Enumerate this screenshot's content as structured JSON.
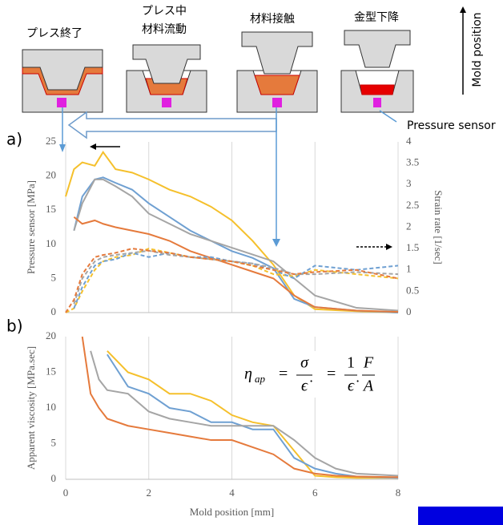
{
  "diagram": {
    "stages": [
      "プレス終了",
      "プレス中",
      "材料流動",
      "材料接触",
      "金型下降"
    ],
    "mold_position": "Mold position",
    "pressure_sensor": "Pressure sensor",
    "panel_a": "a)",
    "panel_b": "b)"
  },
  "equation": {
    "eta": "η",
    "sub": "ap",
    "eq": "=",
    "n1": "σ",
    "d1": "ϵ̇",
    "n2": "1",
    "d2": "ϵ̇",
    "n3": "F",
    "d3": "A"
  },
  "chart_data": [
    {
      "type": "line",
      "ylabel": "Pressure sensor [MPa]",
      "y2label": "Strain rate [1/sec]",
      "xlim": [
        0,
        8
      ],
      "xticks": [
        0,
        2,
        4,
        6,
        8
      ],
      "ylim": [
        0,
        25
      ],
      "yticks": [
        0,
        5,
        10,
        15,
        20,
        25
      ],
      "y2lim": [
        0,
        4
      ],
      "y2ticks": [
        0,
        0.5,
        1,
        1.5,
        2,
        2.5,
        3,
        3.5,
        4
      ],
      "grid": true,
      "x": [
        0,
        0.2,
        0.4,
        0.7,
        0.9,
        1.2,
        1.6,
        2,
        2.5,
        3,
        3.5,
        4,
        4.5,
        5,
        5.5,
        6,
        7,
        8
      ],
      "series": [
        {
          "color": "#f5c02c",
          "values": [
            17,
            21,
            22,
            21.5,
            23.5,
            21,
            20.5,
            19.5,
            18,
            17,
            15.5,
            13.5,
            10.5,
            7,
            2.5,
            0.5,
            0.2,
            0
          ]
        },
        {
          "color": "#6fa0d2",
          "values": [
            null,
            12,
            17,
            19.5,
            19.8,
            19,
            18,
            16,
            14,
            12,
            10.5,
            9,
            8,
            6.5,
            2,
            0.8,
            0.3,
            0
          ]
        },
        {
          "color": "#a5a5a5",
          "values": [
            null,
            12,
            16,
            19.5,
            19.5,
            18.5,
            17,
            14.5,
            13,
            11.5,
            10.5,
            9.5,
            8.5,
            7.5,
            5,
            2.5,
            0.7,
            0.3
          ]
        },
        {
          "color": "#e57a3c",
          "values": [
            null,
            14,
            13,
            13.5,
            13,
            12.5,
            12,
            11.5,
            10.5,
            9,
            8,
            7,
            6,
            5,
            2.5,
            0.8,
            0.3,
            0.1
          ]
        },
        {
          "color": "#f5c02c",
          "axis": "y2",
          "dashed": true,
          "values": [
            0,
            0.1,
            0.5,
            1.0,
            1.2,
            1.3,
            1.35,
            1.5,
            1.4,
            1.3,
            1.25,
            1.2,
            1.1,
            0.9,
            0.85,
            1.0,
            0.9,
            0.8
          ]
        },
        {
          "color": "#6fa0d2",
          "axis": "y2",
          "dashed": true,
          "values": [
            null,
            0.1,
            0.6,
            1.1,
            1.2,
            1.25,
            1.4,
            1.3,
            1.4,
            1.3,
            1.3,
            1.2,
            1.15,
            1.0,
            0.8,
            1.1,
            1.0,
            1.1
          ]
        },
        {
          "color": "#a5a5a5",
          "axis": "y2",
          "dashed": true,
          "values": [
            null,
            0.2,
            0.8,
            1.2,
            1.3,
            1.35,
            1.4,
            1.45,
            1.35,
            1.3,
            1.25,
            1.2,
            1.15,
            1.05,
            0.9,
            0.9,
            0.95,
            0.9
          ]
        },
        {
          "color": "#e57a3c",
          "axis": "y2",
          "dashed": true,
          "values": [
            0,
            0.3,
            0.9,
            1.3,
            1.35,
            1.4,
            1.5,
            1.45,
            1.4,
            1.3,
            1.25,
            1.2,
            1.1,
            1.0,
            0.9,
            0.95,
            1.0,
            0.8
          ]
        }
      ]
    },
    {
      "type": "line",
      "xlabel": "Mold position [mm]",
      "ylabel": "Apparent viscosity [MPa.sec]",
      "xlim": [
        0,
        8
      ],
      "xticks": [
        0,
        2,
        4,
        6,
        8
      ],
      "ylim": [
        0,
        20
      ],
      "yticks": [
        0,
        5,
        10,
        15,
        20
      ],
      "grid": true,
      "x": [
        0.4,
        0.6,
        0.8,
        1,
        1.5,
        2,
        2.5,
        3,
        3.5,
        4,
        4.5,
        5,
        5.5,
        6,
        6.5,
        7,
        8
      ],
      "series": [
        {
          "color": "#f5c02c",
          "values": [
            null,
            null,
            null,
            18,
            15,
            14,
            12,
            12,
            11,
            9,
            8,
            7.5,
            4,
            0.5,
            0.3,
            0.2,
            0.2
          ]
        },
        {
          "color": "#6fa0d2",
          "values": [
            null,
            null,
            null,
            17.5,
            13,
            12,
            10,
            9.5,
            8,
            8,
            7,
            7,
            3,
            1.5,
            0.8,
            0.4,
            0.2
          ]
        },
        {
          "color": "#a5a5a5",
          "values": [
            null,
            18,
            14,
            12.5,
            12,
            9.5,
            8.5,
            8,
            7.5,
            7.5,
            7.5,
            7.5,
            5.5,
            3,
            1.5,
            0.8,
            0.5
          ]
        },
        {
          "color": "#e57a3c",
          "values": [
            20,
            12,
            10,
            8.5,
            7.5,
            7,
            6.5,
            6,
            5.5,
            5.5,
            4.5,
            3.5,
            1.5,
            0.8,
            0.5,
            0.4,
            0.3
          ]
        }
      ]
    }
  ]
}
